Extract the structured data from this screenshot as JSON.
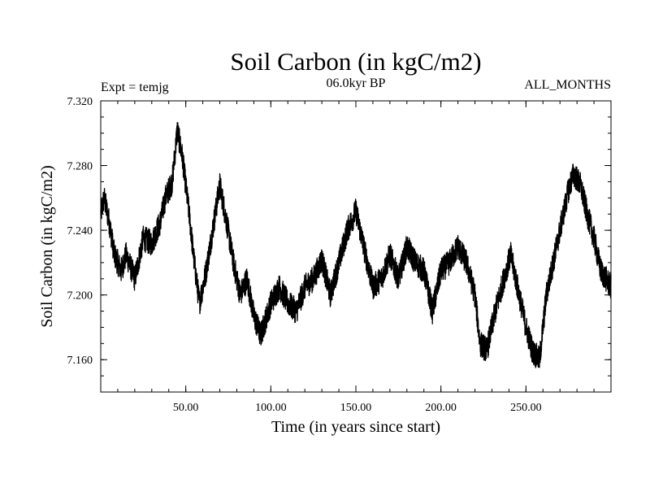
{
  "chart_data": {
    "type": "line",
    "title": "Soil Carbon (in kgC/m2)",
    "subtitle": "06.0kyr BP",
    "left_annotation": "Expt = temjg",
    "right_annotation": "ALL_MONTHS",
    "xlabel": "Time (in years since start)",
    "ylabel": "Soil Carbon (in kgC/m2)",
    "xlim": [
      0,
      300
    ],
    "ylim": [
      7.14,
      7.32
    ],
    "x_ticks": [
      50,
      100,
      150,
      200,
      250
    ],
    "x_tick_labels": [
      "50.00",
      "100.00",
      "150.00",
      "200.00",
      "250.00"
    ],
    "y_ticks": [
      7.16,
      7.2,
      7.24,
      7.28,
      7.32
    ],
    "y_tick_labels": [
      "7.160",
      "7.200",
      "7.240",
      "7.280",
      "7.320"
    ],
    "series": [
      {
        "name": "Soil Carbon",
        "noise_amplitude": 0.008,
        "x": [
          0,
          2,
          5,
          8,
          12,
          15,
          20,
          25,
          30,
          35,
          38,
          42,
          45,
          48,
          52,
          55,
          58,
          62,
          65,
          70,
          74,
          78,
          82,
          86,
          90,
          94,
          97,
          100,
          105,
          110,
          115,
          120,
          125,
          130,
          135,
          140,
          145,
          150,
          155,
          160,
          165,
          170,
          175,
          180,
          185,
          190,
          195,
          200,
          205,
          210,
          215,
          220,
          223,
          227,
          232,
          237,
          241,
          245,
          250,
          254,
          258,
          262,
          266,
          270,
          275,
          278,
          282,
          286,
          290,
          294,
          300
        ],
        "y": [
          7.25,
          7.26,
          7.245,
          7.225,
          7.215,
          7.225,
          7.21,
          7.235,
          7.232,
          7.245,
          7.26,
          7.27,
          7.302,
          7.285,
          7.25,
          7.22,
          7.195,
          7.215,
          7.235,
          7.268,
          7.245,
          7.22,
          7.2,
          7.21,
          7.187,
          7.175,
          7.185,
          7.195,
          7.205,
          7.195,
          7.19,
          7.205,
          7.21,
          7.222,
          7.2,
          7.22,
          7.24,
          7.252,
          7.228,
          7.205,
          7.21,
          7.225,
          7.21,
          7.23,
          7.22,
          7.215,
          7.19,
          7.215,
          7.22,
          7.23,
          7.22,
          7.2,
          7.17,
          7.166,
          7.19,
          7.21,
          7.225,
          7.205,
          7.18,
          7.165,
          7.16,
          7.2,
          7.22,
          7.24,
          7.265,
          7.275,
          7.268,
          7.25,
          7.235,
          7.215,
          7.205
        ]
      }
    ]
  }
}
